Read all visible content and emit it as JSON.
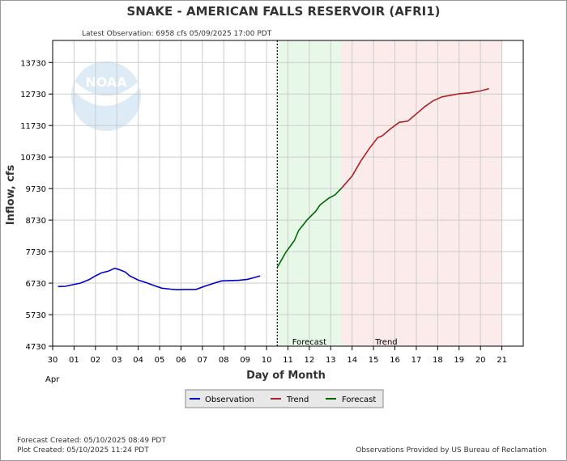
{
  "chart_data": {
    "type": "line",
    "title": "SNAKE - AMERICAN FALLS RESERVOIR  (AFRI1)",
    "subtitle": "Latest Observation: 6958 cfs 05/09/2025 17:00 PDT",
    "xlabel": "Day of Month",
    "ylabel": "Inflow, cfs",
    "x_month_label": "Apr",
    "xlim": [
      0,
      22
    ],
    "ylim": [
      4730,
      14430
    ],
    "y_ticks": [
      4730,
      5730,
      6730,
      7730,
      8730,
      9730,
      10730,
      11730,
      12730,
      13730
    ],
    "x_tick_labels": [
      "30",
      "01",
      "02",
      "03",
      "04",
      "05",
      "06",
      "07",
      "08",
      "09",
      "10",
      "11",
      "12",
      "13",
      "14",
      "15",
      "16",
      "17",
      "18",
      "19",
      "20",
      "21"
    ],
    "grid": true,
    "legend_placement": "bottom-center",
    "region_labels": {
      "forecast": "Forecast",
      "trend": "Trend"
    },
    "watermark": "NOAA",
    "now_line_x": 10.5,
    "forecast_region": [
      10.5,
      13.5
    ],
    "trend_region": [
      13.5,
      21.0
    ],
    "series": [
      {
        "name": "Observation",
        "color": "#0000cc",
        "x": [
          0.25,
          0.6,
          1.0,
          1.3,
          1.7,
          2.0,
          2.3,
          2.6,
          2.9,
          3.1,
          3.4,
          3.6,
          4.0,
          4.4,
          4.8,
          5.1,
          5.5,
          5.8,
          6.2,
          6.7,
          7.1,
          7.5,
          7.9,
          8.3,
          8.7,
          9.1,
          9.4,
          9.7
        ],
        "y": [
          6620,
          6630,
          6690,
          6730,
          6840,
          6960,
          7060,
          7110,
          7200,
          7160,
          7080,
          6960,
          6830,
          6740,
          6640,
          6570,
          6540,
          6520,
          6530,
          6530,
          6630,
          6720,
          6800,
          6810,
          6820,
          6850,
          6900,
          6960
        ]
      },
      {
        "name": "Forecast",
        "color": "#006600",
        "x": [
          10.5,
          10.9,
          11.3,
          11.5,
          11.9,
          12.3,
          12.5,
          12.9,
          13.2,
          13.5
        ],
        "y": [
          7230,
          7710,
          8080,
          8400,
          8740,
          9010,
          9210,
          9420,
          9530,
          9740
        ]
      },
      {
        "name": "Trend",
        "color": "#aa2222",
        "x": [
          13.5,
          14.0,
          14.4,
          14.8,
          15.2,
          15.4,
          15.8,
          16.2,
          16.6,
          17.0,
          17.4,
          17.8,
          18.2,
          18.6,
          19.0,
          19.5,
          20.0,
          20.4
        ],
        "y": [
          9740,
          10130,
          10600,
          11000,
          11350,
          11400,
          11630,
          11830,
          11870,
          12100,
          12330,
          12520,
          12640,
          12690,
          12740,
          12770,
          12830,
          12900
        ]
      }
    ]
  },
  "legend": {
    "observation": "Observation",
    "trend": "Trend",
    "forecast": "Forecast"
  },
  "footer": {
    "forecast_created": "Forecast Created: 05/10/2025 08:49 PDT",
    "plot_created": "Plot Created: 05/10/2025 11:24 PDT",
    "source": "Observations Provided by US Bureau of Reclamation"
  }
}
